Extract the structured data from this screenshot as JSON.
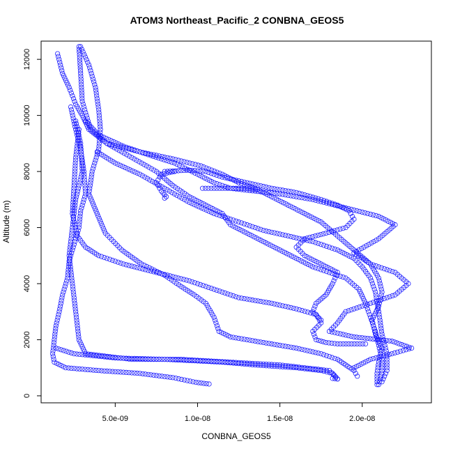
{
  "chart_data": {
    "type": "scatter",
    "title": "ATOM3 Northeast_Pacific_2 CONBNA_GEOS5",
    "xlabel": "CONBNA_GEOS5",
    "ylabel": "Altitude (m)",
    "xlim": [
      5e-10,
      2.42e-08
    ],
    "ylim": [
      -250,
      12650
    ],
    "x_ticks": [
      {
        "value": 5e-09,
        "label": "5.0e-09"
      },
      {
        "value": 1e-08,
        "label": "1.0e-08"
      },
      {
        "value": 1.5e-08,
        "label": "1.5e-08"
      },
      {
        "value": 2e-08,
        "label": "2.0e-08"
      }
    ],
    "y_ticks": [
      {
        "value": 0,
        "label": "0"
      },
      {
        "value": 2000,
        "label": "2000"
      },
      {
        "value": 4000,
        "label": "4000"
      },
      {
        "value": 6000,
        "label": "6000"
      },
      {
        "value": 8000,
        "label": "8000"
      },
      {
        "value": 10000,
        "label": "10000"
      },
      {
        "value": 12000,
        "label": "12000"
      }
    ],
    "marker": "open-circle",
    "grid": false,
    "color": "#1a1aff",
    "series": [
      {
        "points": [
          [
            1.5e-09,
            12200
          ],
          [
            1.8e-09,
            11500
          ],
          [
            2.2e-09,
            11000
          ],
          [
            2.6e-09,
            10400
          ],
          [
            3e-09,
            10000
          ],
          [
            3.4e-09,
            9500
          ],
          [
            4.5e-09,
            9000
          ],
          [
            6.5e-09,
            8700
          ],
          [
            8.5e-09,
            8450
          ],
          [
            1.02e-08,
            8200
          ],
          [
            1.15e-08,
            7900
          ],
          [
            1.25e-08,
            7600
          ],
          [
            1.35e-08,
            7400
          ],
          [
            1.45e-08,
            7100
          ],
          [
            1.55e-08,
            6800
          ],
          [
            1.65e-08,
            6500
          ],
          [
            1.75e-08,
            6200
          ],
          [
            1.85e-08,
            5700
          ],
          [
            1.95e-08,
            5200
          ],
          [
            2.05e-08,
            4700
          ],
          [
            2.1e-08,
            4200
          ],
          [
            2.12e-08,
            3700
          ],
          [
            2.1e-08,
            3200
          ],
          [
            2.06e-08,
            2700
          ],
          [
            2.08e-08,
            2200
          ],
          [
            2.12e-08,
            1700
          ],
          [
            2.1e-08,
            1200
          ],
          [
            2.09e-08,
            800
          ],
          [
            2.09e-08,
            400
          ]
        ]
      },
      {
        "points": [
          [
            2.9e-09,
            12450
          ],
          [
            3.4e-09,
            11800
          ],
          [
            3.8e-09,
            11000
          ],
          [
            4e-09,
            10200
          ],
          [
            4.1e-09,
            9500
          ],
          [
            4e-09,
            8800
          ],
          [
            3.6e-09,
            8000
          ],
          [
            3.4e-09,
            7200
          ],
          [
            3.9e-09,
            6500
          ],
          [
            4.4e-09,
            5800
          ],
          [
            5.4e-09,
            5200
          ],
          [
            6.6e-09,
            4700
          ],
          [
            8e-09,
            4300
          ],
          [
            9e-09,
            3900
          ],
          [
            9.8e-09,
            3600
          ],
          [
            1.05e-08,
            3300
          ],
          [
            1.1e-08,
            2800
          ],
          [
            1.13e-08,
            2300
          ],
          [
            1.2e-08,
            2100
          ],
          [
            1.4e-08,
            1900
          ],
          [
            1.6e-08,
            1700
          ],
          [
            1.75e-08,
            1500
          ],
          [
            1.85e-08,
            1300
          ],
          [
            1.9e-08,
            1100
          ],
          [
            1.95e-08,
            900
          ],
          [
            1.97e-08,
            700
          ]
        ]
      },
      {
        "points": [
          [
            2.8e-09,
            12450
          ],
          [
            2.9e-09,
            11500
          ],
          [
            3e-09,
            10500
          ],
          [
            3.5e-09,
            9500
          ],
          [
            4.5e-09,
            9000
          ],
          [
            6e-09,
            8500
          ],
          [
            7.5e-09,
            8000
          ],
          [
            8.5e-09,
            7500
          ],
          [
            9.5e-09,
            7100
          ],
          [
            1.05e-08,
            6800
          ],
          [
            1.15e-08,
            6500
          ],
          [
            1.2e-08,
            6100
          ],
          [
            1.3e-08,
            5800
          ],
          [
            1.4e-08,
            5500
          ],
          [
            1.5e-08,
            5200
          ],
          [
            1.6e-08,
            4900
          ],
          [
            1.7e-08,
            4600
          ],
          [
            1.8e-08,
            4400
          ],
          [
            1.9e-08,
            4200
          ],
          [
            1.98e-08,
            3800
          ],
          [
            2.02e-08,
            3300
          ],
          [
            2.05e-08,
            2800
          ],
          [
            2.08e-08,
            2300
          ],
          [
            2.1e-08,
            1800
          ],
          [
            2.12e-08,
            1300
          ],
          [
            2.12e-08,
            800
          ],
          [
            2.1e-08,
            400
          ]
        ]
      },
      {
        "points": [
          [
            2.3e-09,
            10300
          ],
          [
            2.6e-09,
            9500
          ],
          [
            2.9e-09,
            8800
          ],
          [
            3.1e-09,
            8000
          ],
          [
            3.2e-09,
            7200
          ],
          [
            2.9e-09,
            6600
          ],
          [
            2.8e-09,
            6000
          ],
          [
            2.5e-09,
            5400
          ],
          [
            2.2e-09,
            4800
          ],
          [
            2.1e-09,
            4200
          ],
          [
            1.8e-09,
            3600
          ],
          [
            1.6e-09,
            3000
          ],
          [
            1.4e-09,
            2500
          ],
          [
            1.3e-09,
            2000
          ],
          [
            1.2e-09,
            1500
          ],
          [
            1.3e-09,
            1200
          ],
          [
            2e-09,
            1000
          ],
          [
            4e-09,
            900
          ],
          [
            6.5e-09,
            800
          ],
          [
            8.5e-09,
            650
          ],
          [
            9.9e-09,
            480
          ],
          [
            1.07e-08,
            420
          ]
        ]
      },
      {
        "points": [
          [
            2.6e-09,
            9800
          ],
          [
            2.9e-09,
            9000
          ],
          [
            3e-09,
            8000
          ],
          [
            2.6e-09,
            7000
          ],
          [
            2.4e-09,
            6000
          ],
          [
            2.2e-09,
            5000
          ],
          [
            2.4e-09,
            4000
          ],
          [
            2.6e-09,
            3000
          ],
          [
            2.8e-09,
            2000
          ],
          [
            3.2e-09,
            1500
          ],
          [
            6e-09,
            1300
          ],
          [
            9e-09,
            1300
          ],
          [
            1.2e-08,
            1200
          ],
          [
            1.5e-08,
            1100
          ],
          [
            1.8e-08,
            900
          ],
          [
            1.85e-08,
            600
          ]
        ]
      },
      {
        "points": [
          [
            3.2e-09,
            9800
          ],
          [
            4e-09,
            9300
          ],
          [
            5.5e-09,
            8900
          ],
          [
            7e-09,
            8600
          ],
          [
            8.6e-09,
            8300
          ],
          [
            1e-08,
            7900
          ],
          [
            1.1e-08,
            7600
          ],
          [
            1.2e-08,
            7400
          ],
          [
            1.35e-08,
            7300
          ],
          [
            1.5e-08,
            7200
          ],
          [
            1.7e-08,
            7000
          ],
          [
            1.9e-08,
            6700
          ],
          [
            2.1e-08,
            6400
          ],
          [
            2.2e-08,
            6100
          ],
          [
            2.1e-08,
            5600
          ],
          [
            1.95e-08,
            5100
          ],
          [
            2.05e-08,
            4700
          ],
          [
            2.2e-08,
            4400
          ],
          [
            2.28e-08,
            4000
          ],
          [
            2.2e-08,
            3600
          ],
          [
            2.05e-08,
            3300
          ],
          [
            1.9e-08,
            3000
          ],
          [
            1.85e-08,
            2600
          ],
          [
            1.8e-08,
            2300
          ],
          [
            1.95e-08,
            2100
          ],
          [
            2.18e-08,
            1950
          ],
          [
            2.3e-08,
            1700
          ],
          [
            2.18e-08,
            1500
          ],
          [
            2.05e-08,
            1300
          ],
          [
            1.95e-08,
            1000
          ]
        ]
      },
      {
        "points": [
          [
            2.8e-09,
            9500
          ],
          [
            2.6e-09,
            8500
          ],
          [
            2.5e-09,
            7500
          ],
          [
            2.4e-09,
            6500
          ],
          [
            2.7e-09,
            5700
          ],
          [
            3.2e-09,
            5300
          ],
          [
            4e-09,
            5000
          ],
          [
            5.5e-09,
            4700
          ],
          [
            7.5e-09,
            4400
          ],
          [
            9.5e-09,
            4100
          ],
          [
            1.1e-08,
            3800
          ],
          [
            1.25e-08,
            3500
          ],
          [
            1.45e-08,
            3300
          ],
          [
            1.6e-08,
            3100
          ],
          [
            1.72e-08,
            2900
          ],
          [
            1.75e-08,
            2600
          ],
          [
            1.7e-08,
            2300
          ],
          [
            1.72e-08,
            2000
          ],
          [
            1.78e-08,
            1900
          ],
          [
            1.85e-08,
            1850
          ],
          [
            2.02e-08,
            1850
          ]
        ]
      },
      {
        "points": [
          [
            8e-09,
            8000
          ],
          [
            9.5e-09,
            8050
          ],
          [
            1.05e-08,
            8000
          ],
          [
            1.15e-08,
            7800
          ],
          [
            1.3e-08,
            7600
          ],
          [
            1.45e-08,
            7400
          ],
          [
            1.6e-08,
            7250
          ],
          [
            1.75e-08,
            7000
          ],
          [
            1.85e-08,
            6800
          ],
          [
            1.92e-08,
            6600
          ],
          [
            1.95e-08,
            6300
          ],
          [
            1.9e-08,
            6000
          ],
          [
            1.78e-08,
            5800
          ],
          [
            1.65e-08,
            5600
          ],
          [
            1.6e-08,
            5300
          ],
          [
            1.65e-08,
            5000
          ],
          [
            1.75e-08,
            4700
          ],
          [
            1.85e-08,
            4400
          ],
          [
            1.82e-08,
            4000
          ],
          [
            1.78e-08,
            3600
          ],
          [
            1.72e-08,
            3300
          ],
          [
            1.7e-08,
            3000
          ],
          [
            1.75e-08,
            2700
          ]
        ]
      },
      {
        "points": [
          [
            1.03e-08,
            7400
          ],
          [
            1.1e-08,
            7400
          ],
          [
            1.2e-08,
            7400
          ],
          [
            1.3e-08,
            7400
          ],
          [
            1.35e-08,
            7350
          ]
        ]
      },
      {
        "points": [
          [
            8e-09,
            7050
          ],
          [
            8.1e-09,
            7100
          ],
          [
            7.8e-09,
            7300
          ],
          [
            7.5e-09,
            7600
          ],
          [
            7.8e-09,
            7900
          ],
          [
            8.6e-09,
            8000
          ]
        ]
      },
      {
        "points": [
          [
            1.4e-09,
            1700
          ],
          [
            2.5e-09,
            1500
          ],
          [
            5e-09,
            1350
          ],
          [
            8e-09,
            1300
          ],
          [
            1.15e-08,
            1200
          ],
          [
            1.35e-08,
            1100
          ],
          [
            1.6e-08,
            1000
          ],
          [
            1.75e-08,
            900
          ],
          [
            1.82e-08,
            800
          ],
          [
            1.85e-08,
            600
          ],
          [
            1.82e-08,
            620
          ]
        ]
      },
      {
        "points": [
          [
            3.9e-09,
            8700
          ],
          [
            5e-09,
            8300
          ],
          [
            6.5e-09,
            7900
          ],
          [
            8e-09,
            7400
          ],
          [
            9.5e-09,
            6900
          ],
          [
            1.1e-08,
            6500
          ],
          [
            1.25e-08,
            6200
          ],
          [
            1.4e-08,
            5900
          ],
          [
            1.55e-08,
            5700
          ],
          [
            1.7e-08,
            5500
          ],
          [
            1.85e-08,
            5200
          ],
          [
            1.95e-08,
            4900
          ],
          [
            2e-08,
            4600
          ],
          [
            2.05e-08,
            4200
          ],
          [
            2.08e-08,
            3700
          ],
          [
            2.1e-08,
            3000
          ],
          [
            2.12e-08,
            2200
          ],
          [
            2.15e-08,
            1500
          ],
          [
            2.15e-08,
            900
          ],
          [
            2.12e-08,
            500
          ]
        ]
      }
    ]
  }
}
